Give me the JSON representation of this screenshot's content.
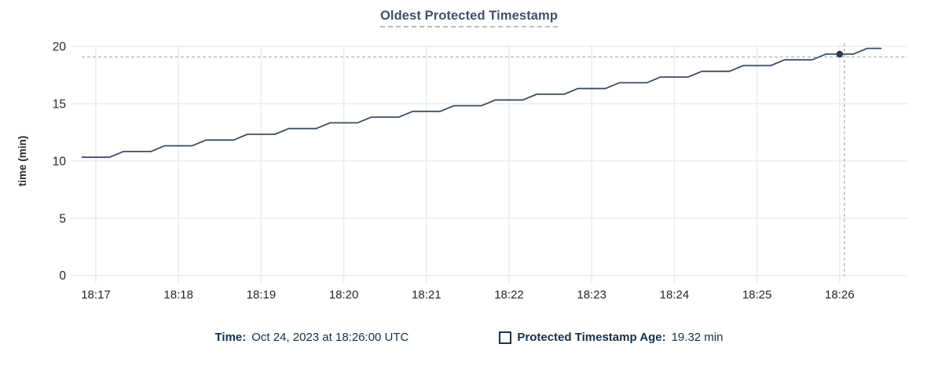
{
  "chart_data": {
    "type": "line",
    "title": "Oldest Protected Timestamp",
    "xlabel": "",
    "ylabel": "time (min)",
    "ylim": [
      0,
      20
    ],
    "yticks": [
      0,
      5,
      10,
      15,
      20
    ],
    "xticks": [
      "18:17",
      "18:18",
      "18:19",
      "18:20",
      "18:21",
      "18:22",
      "18:23",
      "18:24",
      "18:25",
      "18:26"
    ],
    "grid": true,
    "legend_position": "bottom",
    "series": [
      {
        "name": "Protected Timestamp Age",
        "unit": "min",
        "start_time": "18:16:50",
        "interval_seconds": 10,
        "values": [
          10.32,
          10.32,
          10.32,
          10.82,
          10.82,
          10.82,
          11.32,
          11.32,
          11.32,
          11.82,
          11.82,
          11.82,
          12.32,
          12.32,
          12.32,
          12.82,
          12.82,
          12.82,
          13.32,
          13.32,
          13.32,
          13.82,
          13.82,
          13.82,
          14.32,
          14.32,
          14.32,
          14.82,
          14.82,
          14.82,
          15.32,
          15.32,
          15.32,
          15.82,
          15.82,
          15.82,
          16.32,
          16.32,
          16.32,
          16.82,
          16.82,
          16.82,
          17.32,
          17.32,
          17.32,
          17.82,
          17.82,
          17.82,
          18.32,
          18.32,
          18.32,
          18.82,
          18.82,
          18.82,
          19.32,
          19.32,
          19.32,
          19.82,
          19.82
        ]
      }
    ],
    "hover": {
      "time": "18:26:00",
      "value": 19.32,
      "time_label": "Oct 24, 2023 at 18:26:00 UTC",
      "value_label": "19.32 min"
    },
    "colors": {
      "title": "#3f5169",
      "title_underline": "#b3bdc9",
      "axis_label": "#262626",
      "axis_title": "#24292e",
      "grid": "#ededed",
      "line": "#3e4c63",
      "point": "#2c3a52",
      "crosshair": "#a3b8c4",
      "legend_text": "#14304a",
      "legend_swatch_border": "#1d3247"
    }
  },
  "legend": {
    "time_label": "Time:",
    "time_value": "Oct 24, 2023 at 18:26:00 UTC",
    "series_label": "Protected Timestamp Age:",
    "series_value": "19.32 min"
  }
}
